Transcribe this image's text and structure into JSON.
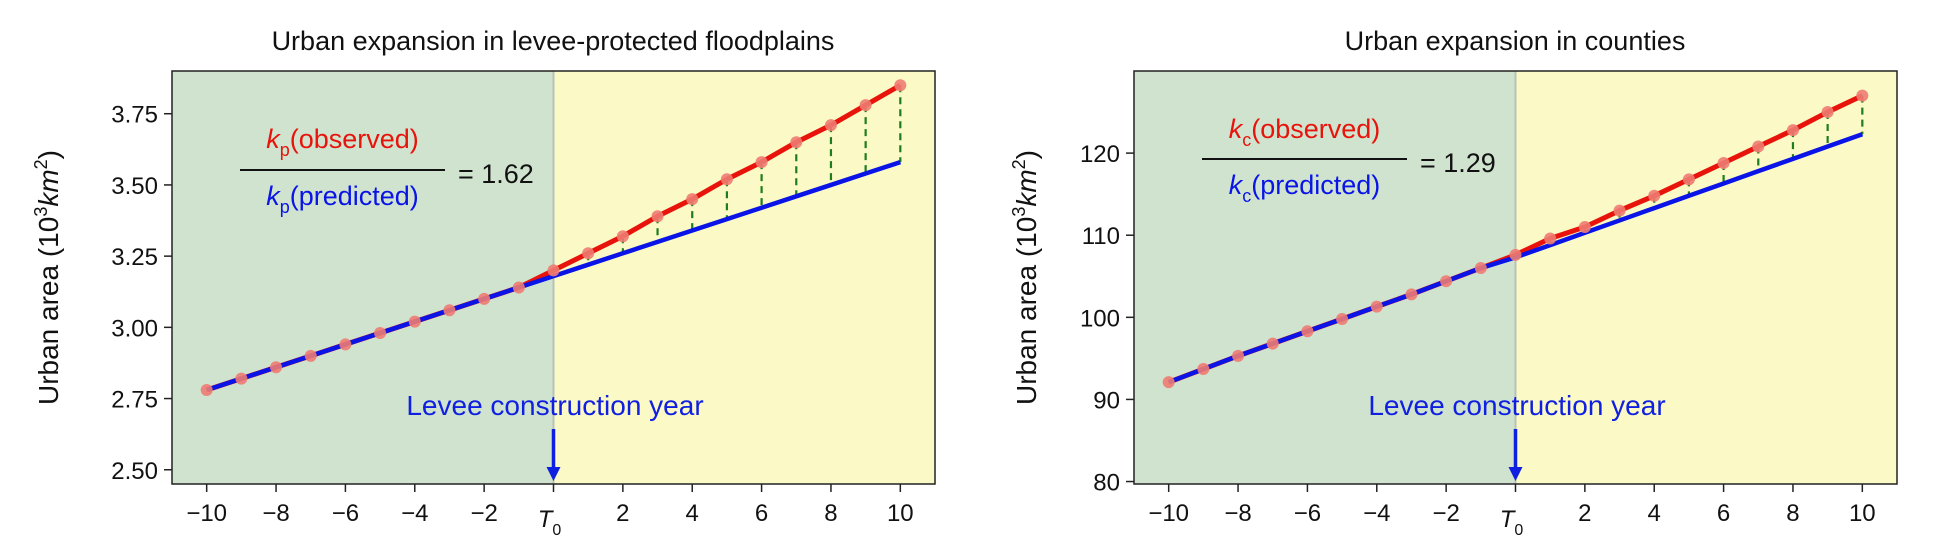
{
  "chart_data": [
    {
      "type": "line",
      "title": "Urban expansion in levee-protected floodplains",
      "ylabel_main": "Urban area (10",
      "ylabel_sup": "3",
      "ylabel_unit": "km",
      "ylabel_unit_sup": "2",
      "ylabel_close": ")",
      "xlim": [
        -11,
        11
      ],
      "ylim": [
        2.45,
        3.9
      ],
      "xticks": [
        -10,
        -8,
        -6,
        -4,
        -2,
        0,
        2,
        4,
        6,
        8,
        10
      ],
      "xtick_labels": [
        "−10",
        "−8",
        "−6",
        "−4",
        "−2",
        "T",
        "2",
        "4",
        "6",
        "8",
        "10"
      ],
      "t0_sub": "0",
      "yticks": [
        2.5,
        2.75,
        3.0,
        3.25,
        3.5,
        3.75
      ],
      "ytick_labels": [
        "2.50",
        "2.75",
        "3.00",
        "3.25",
        "3.50",
        "3.75"
      ],
      "pre_region_color": "#cfe3cf",
      "post_region_color": "#fbf9c6",
      "x": [
        -10,
        -9,
        -8,
        -7,
        -6,
        -5,
        -4,
        -3,
        -2,
        -1,
        0,
        1,
        2,
        3,
        4,
        5,
        6,
        7,
        8,
        9,
        10
      ],
      "series": [
        {
          "key": "observed",
          "color": "#e8140c",
          "values": [
            2.78,
            2.82,
            2.86,
            2.9,
            2.94,
            2.98,
            3.02,
            3.06,
            3.1,
            3.14,
            3.2,
            3.26,
            3.32,
            3.39,
            3.45,
            3.52,
            3.58,
            3.65,
            3.71,
            3.78,
            3.85
          ]
        },
        {
          "key": "predicted",
          "color": "#0a14e6",
          "values": [
            2.78,
            2.82,
            2.86,
            2.9,
            2.94,
            2.98,
            3.02,
            3.06,
            3.1,
            3.14,
            3.18,
            3.22,
            3.26,
            3.3,
            3.34,
            3.38,
            3.42,
            3.46,
            3.5,
            3.54,
            3.58
          ]
        }
      ],
      "marker_color": "#ee7b72",
      "diff_line_color": "#1e7d1e",
      "annotation": {
        "symbol": "k",
        "subscript": "p",
        "numerator_text": "(observed)",
        "denominator_text": "(predicted)",
        "ratio_text": "= 1.62"
      },
      "levee_label": "Levee construction year",
      "levee_color": "#1020e0"
    },
    {
      "type": "line",
      "title": "Urban expansion in counties",
      "ylabel_main": "Urban area (10",
      "ylabel_sup": "3",
      "ylabel_unit": "km",
      "ylabel_unit_sup": "2",
      "ylabel_close": ")",
      "xlim": [
        -11,
        11
      ],
      "ylim": [
        79.7,
        130
      ],
      "xticks": [
        -10,
        -8,
        -6,
        -4,
        -2,
        0,
        2,
        4,
        6,
        8,
        10
      ],
      "xtick_labels": [
        "−10",
        "−8",
        "−6",
        "−4",
        "−2",
        "T",
        "2",
        "4",
        "6",
        "8",
        "10"
      ],
      "t0_sub": "0",
      "yticks": [
        80,
        90,
        100,
        110,
        120
      ],
      "ytick_labels": [
        "80",
        "90",
        "100",
        "110",
        "120"
      ],
      "pre_region_color": "#cfe3cf",
      "post_region_color": "#fbf9c6",
      "x": [
        -10,
        -9,
        -8,
        -7,
        -6,
        -5,
        -4,
        -3,
        -2,
        -1,
        0,
        1,
        2,
        3,
        4,
        5,
        6,
        7,
        8,
        9,
        10
      ],
      "series": [
        {
          "key": "observed",
          "color": "#e8140c",
          "values": [
            92.1,
            93.7,
            95.3,
            96.8,
            98.3,
            99.8,
            101.3,
            102.8,
            104.4,
            106.0,
            107.6,
            109.6,
            111.0,
            113.0,
            114.8,
            116.8,
            118.8,
            120.8,
            122.8,
            125.0,
            127.0
          ]
        },
        {
          "key": "predicted",
          "color": "#0a14e6",
          "values": [
            92.1,
            93.7,
            95.3,
            96.8,
            98.3,
            99.8,
            101.3,
            102.8,
            104.4,
            106.0,
            107.3,
            108.8,
            110.3,
            111.8,
            113.3,
            114.8,
            116.3,
            117.8,
            119.3,
            120.8,
            122.3
          ]
        }
      ],
      "marker_color": "#ee7b72",
      "diff_line_color": "#1e7d1e",
      "annotation": {
        "symbol": "k",
        "subscript": "c",
        "numerator_text": "(observed)",
        "denominator_text": "(predicted)",
        "ratio_text": "= 1.29"
      },
      "levee_label": "Levee construction year",
      "levee_color": "#1020e0"
    }
  ]
}
